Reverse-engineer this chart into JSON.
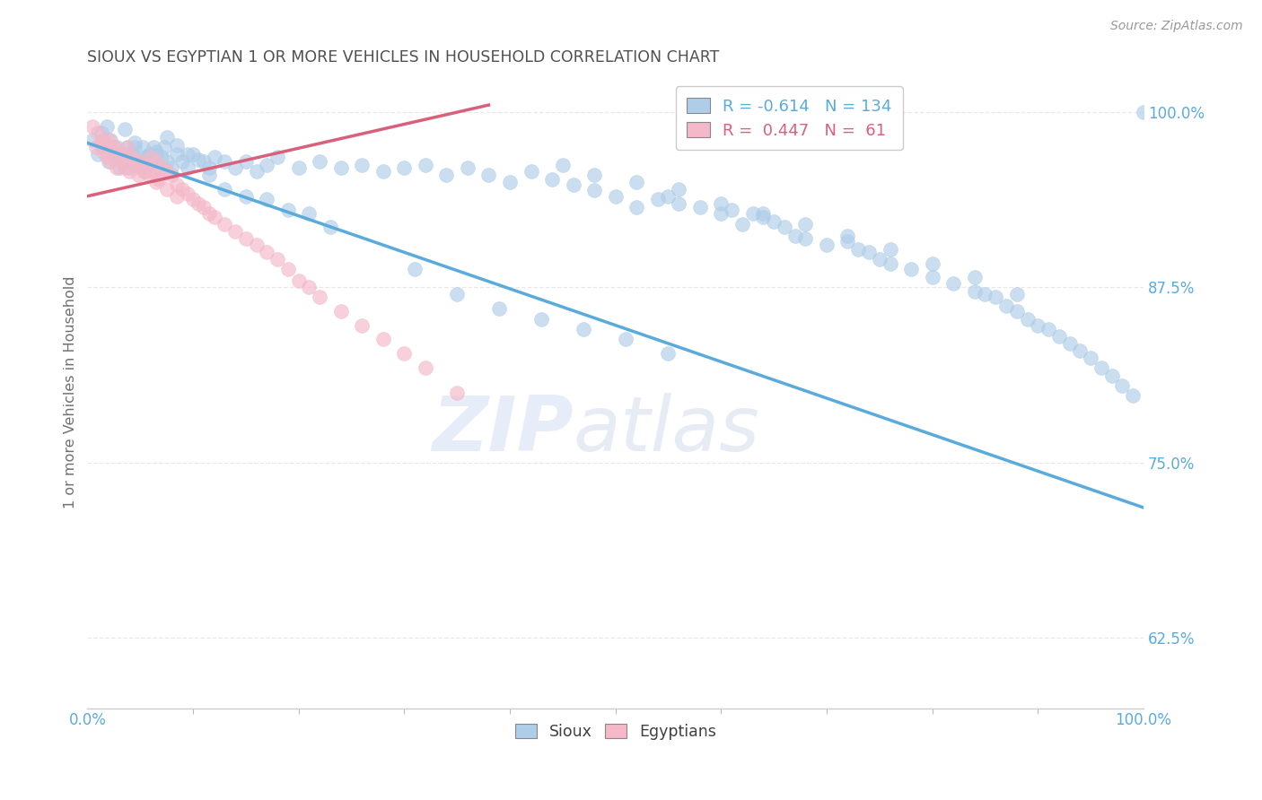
{
  "title": "SIOUX VS EGYPTIAN 1 OR MORE VEHICLES IN HOUSEHOLD CORRELATION CHART",
  "source_text": "Source: ZipAtlas.com",
  "ylabel": "1 or more Vehicles in Household",
  "xlim": [
    0.0,
    1.0
  ],
  "ylim": [
    0.575,
    1.025
  ],
  "ytick_values": [
    0.625,
    0.75,
    0.875,
    1.0
  ],
  "ytick_labels": [
    "62.5%",
    "75.0%",
    "87.5%",
    "100.0%"
  ],
  "watermark_zip": "ZIP",
  "watermark_atlas": "atlas",
  "blue_color": "#aecde8",
  "pink_color": "#f4b8c8",
  "blue_line_color": "#5aabdb",
  "pink_line_color": "#d9607a",
  "sioux_x": [
    0.005,
    0.01,
    0.013,
    0.015,
    0.018,
    0.02,
    0.022,
    0.025,
    0.028,
    0.03,
    0.033,
    0.035,
    0.038,
    0.04,
    0.042,
    0.045,
    0.048,
    0.05,
    0.052,
    0.055,
    0.058,
    0.06,
    0.063,
    0.065,
    0.068,
    0.07,
    0.073,
    0.075,
    0.08,
    0.085,
    0.09,
    0.095,
    0.1,
    0.11,
    0.115,
    0.12,
    0.13,
    0.14,
    0.15,
    0.16,
    0.17,
    0.18,
    0.2,
    0.22,
    0.24,
    0.26,
    0.28,
    0.3,
    0.32,
    0.34,
    0.36,
    0.38,
    0.4,
    0.42,
    0.44,
    0.46,
    0.48,
    0.5,
    0.52,
    0.54,
    0.55,
    0.56,
    0.58,
    0.6,
    0.61,
    0.62,
    0.63,
    0.64,
    0.65,
    0.66,
    0.67,
    0.68,
    0.7,
    0.72,
    0.73,
    0.74,
    0.75,
    0.76,
    0.78,
    0.8,
    0.82,
    0.84,
    0.85,
    0.86,
    0.87,
    0.88,
    0.89,
    0.9,
    0.91,
    0.92,
    0.93,
    0.94,
    0.95,
    0.96,
    0.97,
    0.98,
    0.99,
    1.0,
    0.035,
    0.045,
    0.055,
    0.065,
    0.075,
    0.085,
    0.095,
    0.105,
    0.115,
    0.13,
    0.15,
    0.17,
    0.19,
    0.21,
    0.23,
    0.31,
    0.35,
    0.39,
    0.43,
    0.47,
    0.51,
    0.55,
    0.45,
    0.48,
    0.52,
    0.56,
    0.6,
    0.64,
    0.68,
    0.72,
    0.76,
    0.8,
    0.84,
    0.88
  ],
  "sioux_y": [
    0.98,
    0.97,
    0.985,
    0.975,
    0.99,
    0.965,
    0.98,
    0.97,
    0.975,
    0.96,
    0.97,
    0.965,
    0.975,
    0.96,
    0.97,
    0.975,
    0.965,
    0.96,
    0.975,
    0.965,
    0.97,
    0.965,
    0.975,
    0.97,
    0.96,
    0.968,
    0.975,
    0.965,
    0.96,
    0.97,
    0.965,
    0.96,
    0.97,
    0.965,
    0.96,
    0.968,
    0.965,
    0.96,
    0.965,
    0.958,
    0.962,
    0.968,
    0.96,
    0.965,
    0.96,
    0.962,
    0.958,
    0.96,
    0.962,
    0.955,
    0.96,
    0.955,
    0.95,
    0.958,
    0.952,
    0.948,
    0.944,
    0.94,
    0.932,
    0.938,
    0.94,
    0.935,
    0.932,
    0.928,
    0.93,
    0.92,
    0.928,
    0.925,
    0.922,
    0.918,
    0.912,
    0.91,
    0.905,
    0.908,
    0.902,
    0.9,
    0.895,
    0.892,
    0.888,
    0.882,
    0.878,
    0.872,
    0.87,
    0.868,
    0.862,
    0.858,
    0.852,
    0.848,
    0.845,
    0.84,
    0.835,
    0.83,
    0.825,
    0.818,
    0.812,
    0.805,
    0.798,
    1.0,
    0.988,
    0.978,
    0.968,
    0.972,
    0.982,
    0.976,
    0.97,
    0.966,
    0.955,
    0.945,
    0.94,
    0.938,
    0.93,
    0.928,
    0.918,
    0.888,
    0.87,
    0.86,
    0.852,
    0.845,
    0.838,
    0.828,
    0.962,
    0.955,
    0.95,
    0.945,
    0.935,
    0.928,
    0.92,
    0.912,
    0.902,
    0.892,
    0.882,
    0.87
  ],
  "egypt_x": [
    0.005,
    0.008,
    0.01,
    0.013,
    0.015,
    0.018,
    0.02,
    0.022,
    0.025,
    0.028,
    0.03,
    0.033,
    0.035,
    0.038,
    0.04,
    0.042,
    0.045,
    0.048,
    0.05,
    0.053,
    0.055,
    0.058,
    0.06,
    0.063,
    0.065,
    0.068,
    0.07,
    0.075,
    0.08,
    0.085,
    0.09,
    0.095,
    0.1,
    0.105,
    0.11,
    0.115,
    0.12,
    0.13,
    0.14,
    0.15,
    0.16,
    0.17,
    0.18,
    0.19,
    0.2,
    0.21,
    0.22,
    0.24,
    0.26,
    0.28,
    0.3,
    0.32,
    0.35,
    0.015,
    0.025,
    0.035,
    0.045,
    0.055,
    0.065,
    0.075,
    0.085
  ],
  "egypt_y": [
    0.99,
    0.975,
    0.985,
    0.978,
    0.972,
    0.968,
    0.98,
    0.965,
    0.975,
    0.96,
    0.97,
    0.965,
    0.96,
    0.975,
    0.958,
    0.968,
    0.962,
    0.955,
    0.965,
    0.958,
    0.962,
    0.955,
    0.968,
    0.958,
    0.965,
    0.952,
    0.96,
    0.958,
    0.955,
    0.948,
    0.945,
    0.942,
    0.938,
    0.935,
    0.932,
    0.928,
    0.925,
    0.92,
    0.915,
    0.91,
    0.905,
    0.9,
    0.895,
    0.888,
    0.88,
    0.875,
    0.868,
    0.858,
    0.848,
    0.838,
    0.828,
    0.818,
    0.8,
    0.98,
    0.975,
    0.97,
    0.965,
    0.958,
    0.95,
    0.945,
    0.94
  ],
  "blue_trend_x": [
    0.0,
    1.0
  ],
  "blue_trend_y": [
    0.978,
    0.718
  ],
  "pink_trend_x": [
    0.0,
    0.38
  ],
  "pink_trend_y": [
    0.94,
    1.005
  ],
  "background": "#ffffff",
  "grid_color": "#e8e8e8",
  "title_color": "#505050",
  "tick_color": "#5aabdb",
  "label_color": "#707070"
}
